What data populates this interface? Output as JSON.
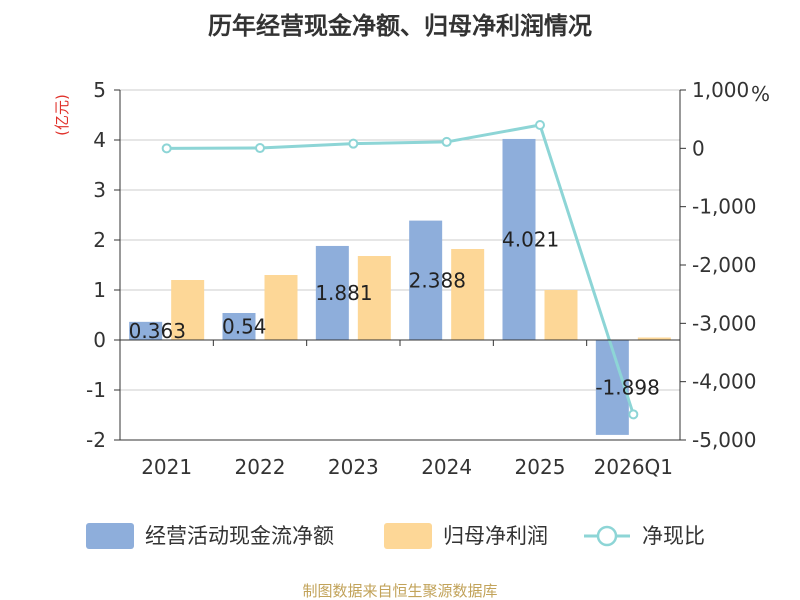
{
  "colors": {
    "cashflow": "#8eaedb",
    "profit": "#fdd797",
    "ratio": "#8dd5d6",
    "ylabel": "#e0312a",
    "source": "#c2a35a",
    "axis": "#333333",
    "grid": "#cccccc"
  },
  "chart_data": {
    "type": "bar",
    "title": "历年经营现金净额、归母净利润情况",
    "categories": [
      "2021",
      "2022",
      "2023",
      "2024",
      "2025",
      "2026Q1"
    ],
    "series": [
      {
        "name": "经营活动现金流净额",
        "type": "bar",
        "axis": "left",
        "values": [
          0.363,
          0.54,
          1.881,
          2.388,
          4.021,
          -1.898
        ],
        "labels": [
          "0.363",
          "0.54",
          "1.881",
          "2.388",
          "4.021",
          "-1.898"
        ]
      },
      {
        "name": "归母净利润",
        "type": "bar",
        "axis": "left",
        "values": [
          1.2,
          1.3,
          1.68,
          1.82,
          1.0,
          0.05
        ]
      },
      {
        "name": "净现比",
        "type": "line",
        "axis": "right",
        "values": [
          0,
          5,
          80,
          110,
          400,
          -4560
        ]
      }
    ],
    "left_axis": {
      "label": "(亿元)",
      "range": [
        -2,
        5
      ],
      "ticks": [
        5,
        4,
        3,
        2,
        1,
        0,
        -1,
        -2
      ],
      "tick_labels": [
        "5",
        "4",
        "3",
        "2",
        "1",
        "0",
        "-1",
        "-2"
      ]
    },
    "right_axis": {
      "unit": "%",
      "range": [
        -5000,
        1000
      ],
      "ticks": [
        1000,
        0,
        -1000,
        -2000,
        -3000,
        -4000,
        -5000
      ],
      "tick_labels": [
        "1,000",
        "0",
        "-1,000",
        "-2,000",
        "-3,000",
        "-4,000",
        "-5,000"
      ]
    },
    "legend_position": "bottom",
    "grid": true
  },
  "source": "制图数据来自恒生聚源数据库"
}
